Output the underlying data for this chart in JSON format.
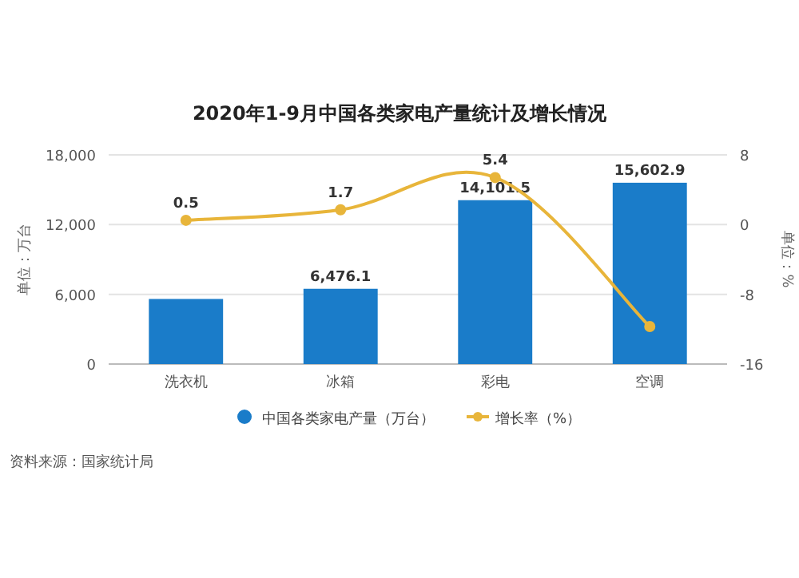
{
  "chart_data": {
    "type": "bar",
    "title": "2020年1-9月中国各类家电产量统计及增长情况",
    "ylabel": "单位：万台",
    "y2label": "单位：%",
    "categories": [
      "洗衣机",
      "冰箱",
      "彩电",
      "空调"
    ],
    "series": [
      {
        "name": "中国各类家电产量（万台）",
        "color": "#1a7cc9",
        "values": [
          5600,
          6476.1,
          14101.5,
          15602.9
        ],
        "value_labels": [
          null,
          "6,476.1",
          "14,101.5",
          "15,602.9"
        ]
      },
      {
        "name": "增长率（%）",
        "type": "line",
        "axis": "y2",
        "color": "#e8b53a",
        "marker": "circle",
        "values": [
          0.5,
          1.7,
          5.4,
          -11.7
        ],
        "value_labels": [
          "0.5",
          "1.7",
          "5.4",
          null
        ]
      }
    ],
    "ylim": [
      0,
      18000
    ],
    "yticks": [
      0,
      {
        "value": 6000,
        "label": "6,000"
      },
      {
        "value": 12000,
        "label": "12,000"
      },
      {
        "value": 18000,
        "label": "18,000"
      }
    ],
    "y2lim": [
      -16,
      8
    ],
    "y2ticks": [
      -16,
      -8,
      0,
      8
    ],
    "grid": "y",
    "legend": "bottom",
    "annotations": [
      "资料来源：国家统计局"
    ]
  }
}
